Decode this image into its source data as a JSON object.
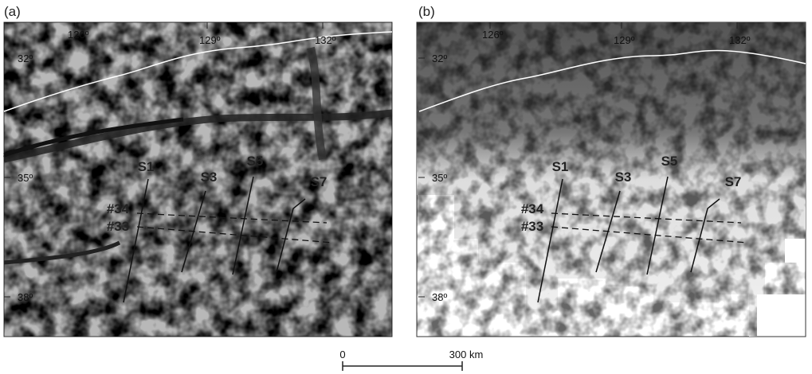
{
  "panels": [
    {
      "label": "(a)",
      "longitudes": [
        "126º",
        "129º",
        "132º"
      ],
      "latitudes": [
        "32º",
        "35º",
        "38º"
      ],
      "profiles": [
        "S1",
        "S3",
        "S5",
        "S7"
      ],
      "lines": [
        "#34",
        "#33"
      ]
    },
    {
      "label": "(b)",
      "longitudes": [
        "126º",
        "129º",
        "132º"
      ],
      "latitudes": [
        "32º",
        "35º",
        "38º"
      ],
      "profiles": [
        "S1",
        "S3",
        "S5",
        "S7"
      ],
      "lines": [
        "#34",
        "#33"
      ]
    }
  ],
  "scale_bar": {
    "start": "0",
    "end": "300 km"
  }
}
